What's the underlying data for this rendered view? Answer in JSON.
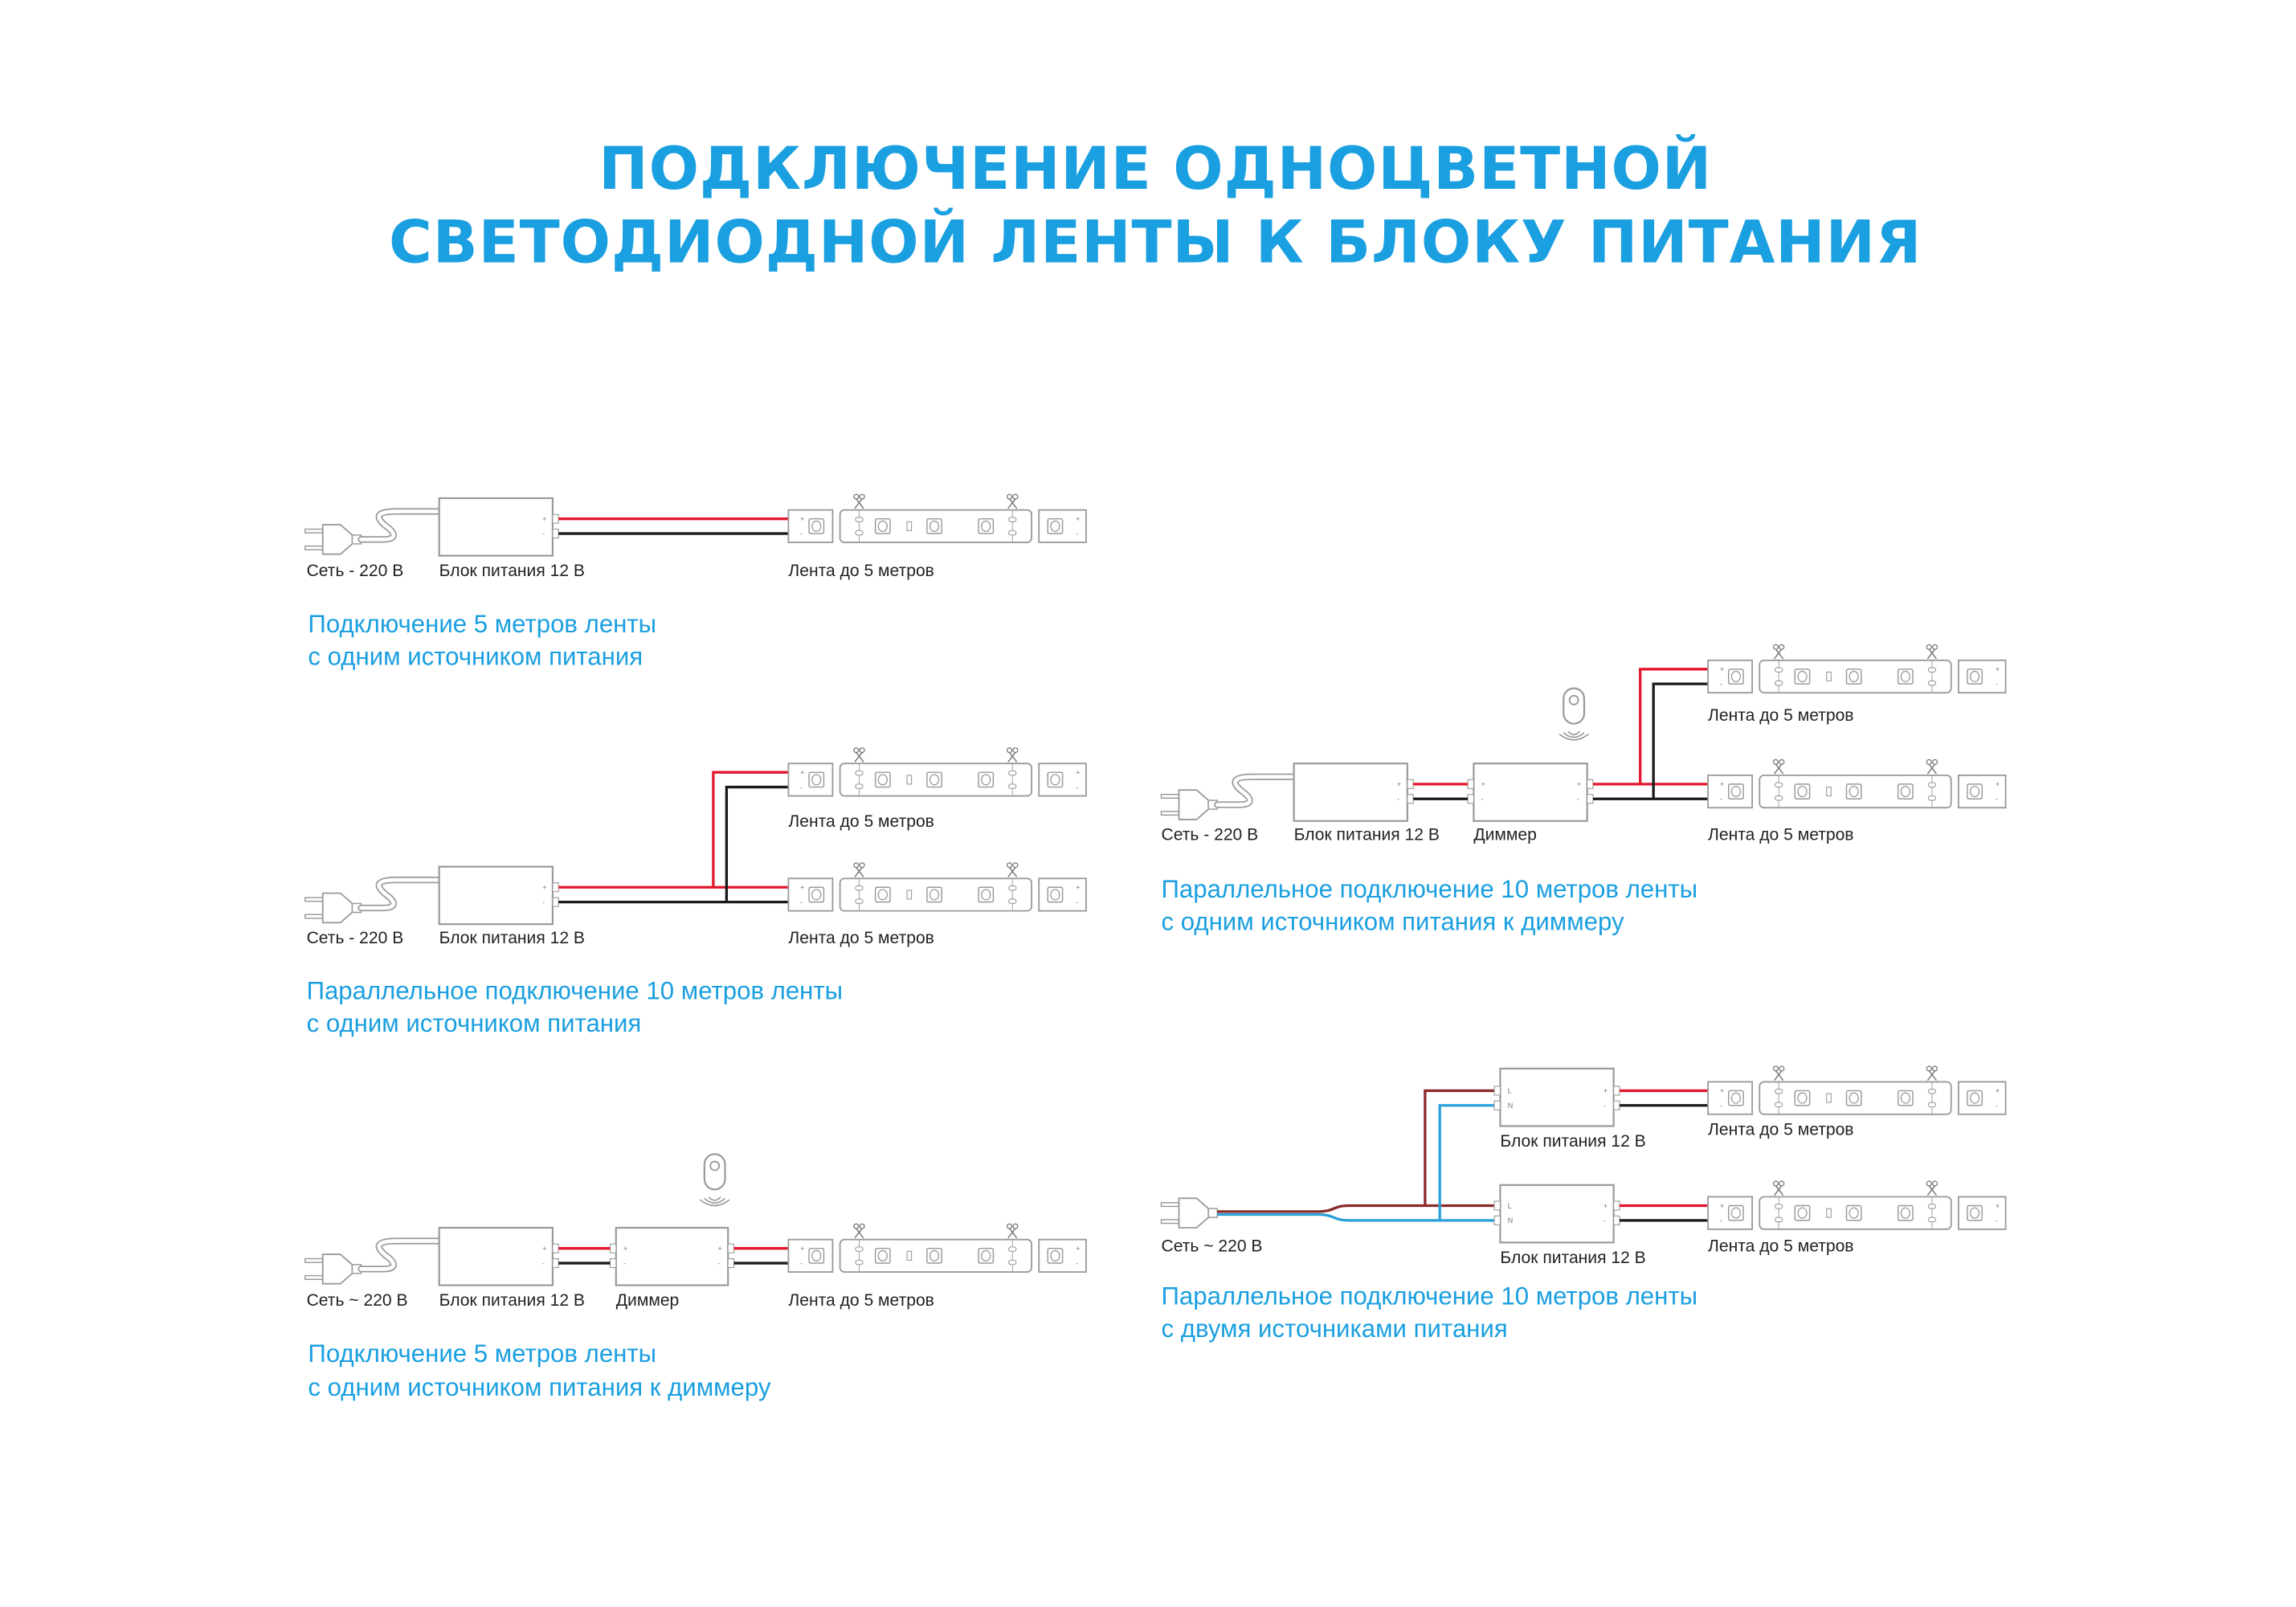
{
  "title": {
    "line1": "ПОДКЛЮЧЕНИЕ ОДНОЦВЕТНОЙ",
    "line2": "СВЕТОДИОДНОЙ ЛЕНТЫ К БЛОКУ ПИТАНИЯ"
  },
  "colors": {
    "accent": "#1a9fe0",
    "wire_positive": "#e3162c",
    "wire_negative": "#1a1a1a",
    "wire_line": "#8b2a2a",
    "wire_neutral": "#2aa0d8",
    "outline": "#9a9a9a"
  },
  "diagrams": [
    {
      "labels": {
        "mains": "Сеть - 220 В",
        "psu": "Блок питания 12 В",
        "strip": "Лента до 5 метров"
      },
      "caption": [
        "Подключение 5 метров ленты",
        "с одним источником питания"
      ]
    },
    {
      "labels": {
        "mains": "Сеть - 220 В",
        "psu": "Блок питания 12 В",
        "strip_top": "Лента до 5 метров",
        "strip_bottom": "Лента до 5 метров"
      },
      "caption": [
        "Параллельное подключение 10 метров ленты",
        "с одним источником питания"
      ]
    },
    {
      "labels": {
        "mains": "Сеть ~ 220 В",
        "psu": "Блок питания 12 В",
        "dimmer": "Диммер",
        "strip": "Лента до 5 метров"
      },
      "caption": [
        "Подключение 5 метров ленты",
        "с одним источником питания к диммеру"
      ]
    },
    {
      "labels": {
        "mains": "Сеть - 220 В",
        "psu": "Блок питания 12 В",
        "dimmer": "Диммер",
        "strip_top": "Лента до 5 метров",
        "strip_bottom": "Лента до 5 метров"
      },
      "caption": [
        "Параллельное подключение 10 метров ленты",
        "с одним источником питания к диммеру"
      ]
    },
    {
      "labels": {
        "mains": "Сеть ~ 220 В",
        "psu_top": "Блок питания 12 В",
        "psu_bottom": "Блок питания 12 В",
        "strip_top": "Лента до 5 метров",
        "strip_bottom": "Лента до 5 метров"
      },
      "caption": [
        "Параллельное подключение 10 метров ленты",
        "с двумя источниками питания"
      ]
    }
  ],
  "terminals": {
    "plus": "+",
    "minus": "-",
    "line": "L",
    "neutral": "N"
  }
}
